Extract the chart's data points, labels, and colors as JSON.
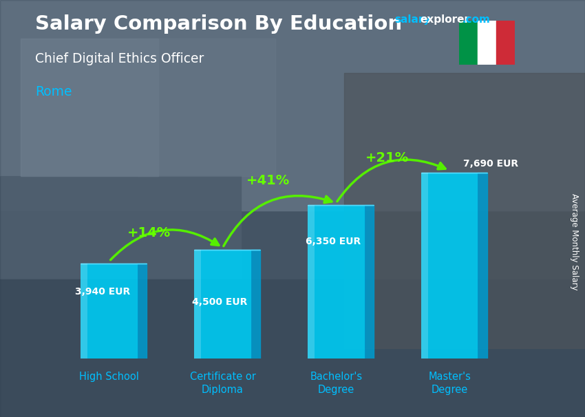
{
  "title": "Salary Comparison By Education",
  "subtitle": "Chief Digital Ethics Officer",
  "city": "Rome",
  "watermark_salary": "salary",
  "watermark_explorer": "explorer",
  "watermark_com": ".com",
  "ylabel": "Average Monthly Salary",
  "categories": [
    "High School",
    "Certificate or\nDiploma",
    "Bachelor's\nDegree",
    "Master's\nDegree"
  ],
  "values": [
    3940,
    4500,
    6350,
    7690
  ],
  "labels": [
    "3,940 EUR",
    "4,500 EUR",
    "6,350 EUR",
    "7,690 EUR"
  ],
  "pct_labels": [
    "+14%",
    "+41%",
    "+21%"
  ],
  "bar_face_color": "#00c8f0",
  "bar_side_color": "#0099cc",
  "bar_top_color": "#55ddff",
  "bg_gray": "#7a8a9a",
  "text_white": "#ffffff",
  "text_cyan": "#00bfff",
  "text_green": "#66ff00",
  "arrow_green": "#55ee00",
  "flag_green": "#009246",
  "flag_red": "#CE2B37",
  "figsize": [
    8.5,
    6.06
  ],
  "dpi": 100
}
